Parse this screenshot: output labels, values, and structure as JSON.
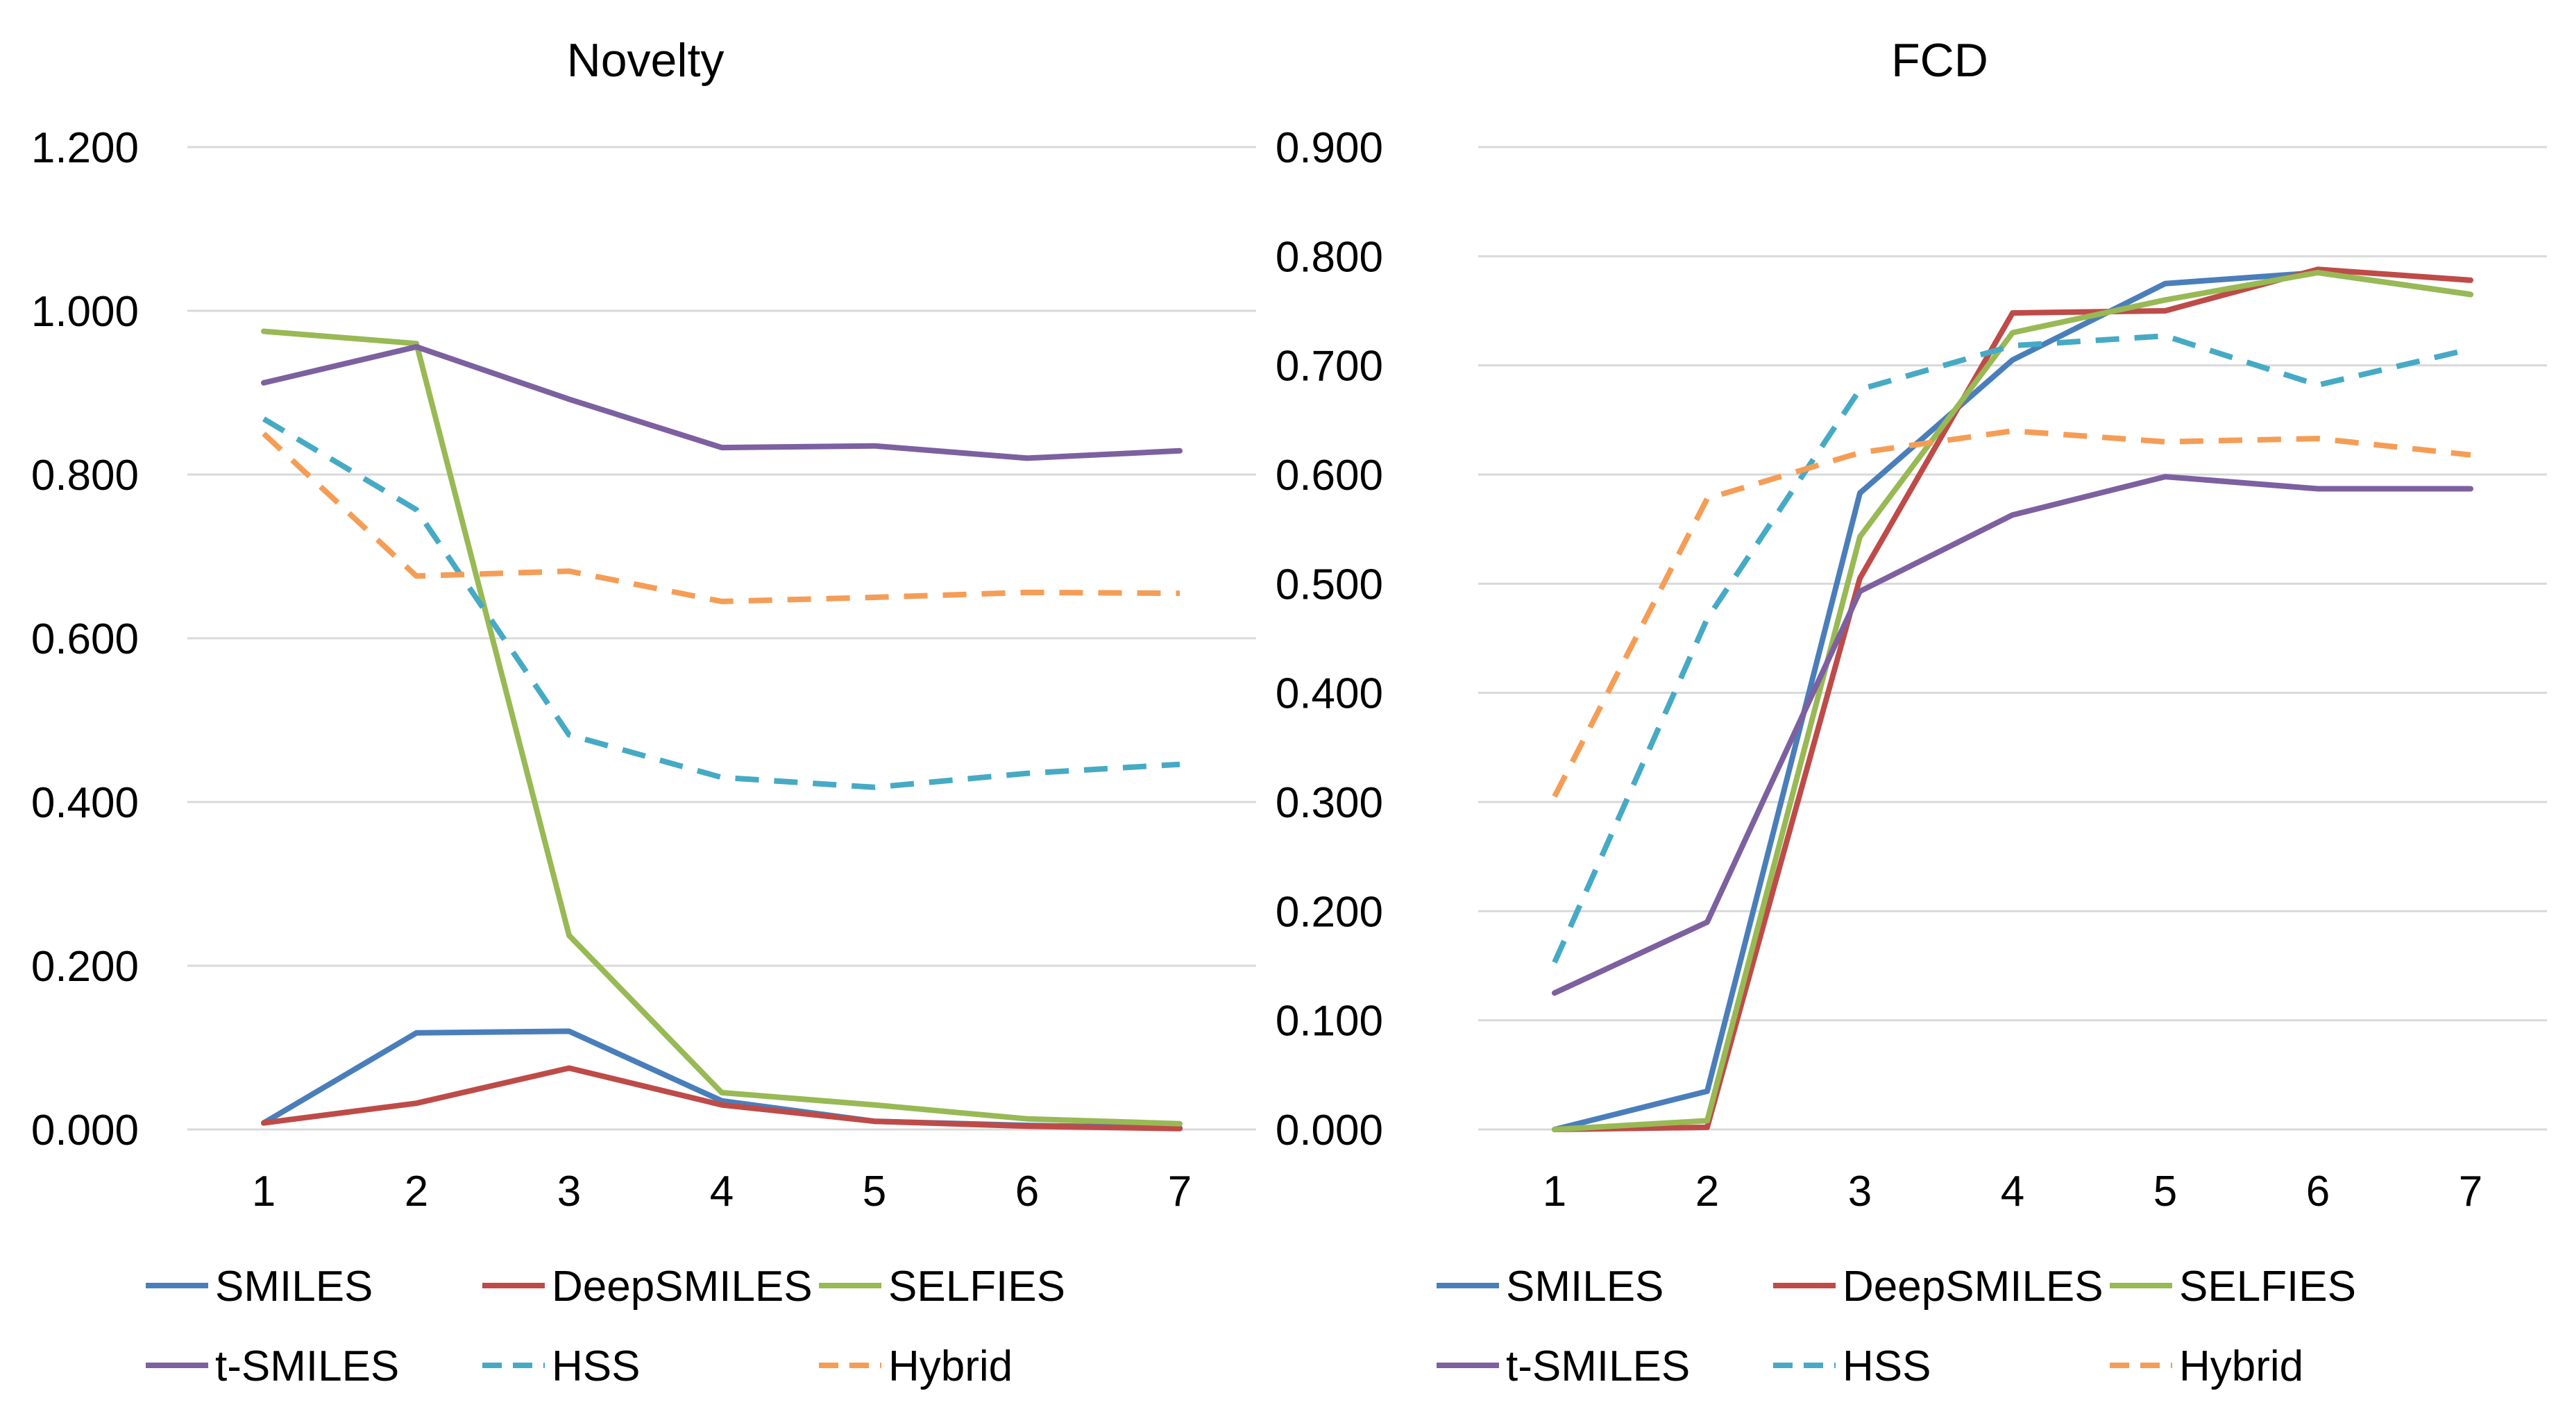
{
  "colors": {
    "SMILES": "#4a7ebb",
    "DeepSMILES": "#be4b48",
    "SELFIES": "#98b954",
    "t-SMILES": "#7d60a0",
    "HSS": "#46aac5",
    "Hybrid": "#f59d56",
    "grid": "#d9d9d9"
  },
  "chart_data": [
    {
      "type": "line",
      "title": "Novelty",
      "xlabel": "",
      "ylabel": "",
      "x": [
        1,
        2,
        3,
        4,
        5,
        6,
        7
      ],
      "ylim": [
        0,
        1.2
      ],
      "yticks": [
        "0.000",
        "0.200",
        "0.400",
        "0.600",
        "0.800",
        "1.000",
        "1.200"
      ],
      "grid": true,
      "legend": "bottom",
      "series": [
        {
          "name": "SMILES",
          "style": "solid",
          "values": [
            0.008,
            0.118,
            0.12,
            0.035,
            0.01,
            0.005,
            0.002
          ]
        },
        {
          "name": "DeepSMILES",
          "style": "solid",
          "values": [
            0.008,
            0.032,
            0.075,
            0.03,
            0.01,
            0.004,
            0.001
          ]
        },
        {
          "name": "SELFIES",
          "style": "solid",
          "values": [
            0.975,
            0.96,
            0.237,
            0.045,
            0.03,
            0.013,
            0.007
          ]
        },
        {
          "name": "t-SMILES",
          "style": "solid",
          "values": [
            0.912,
            0.956,
            0.892,
            0.833,
            0.835,
            0.82,
            0.829
          ]
        },
        {
          "name": "HSS",
          "style": "dashed",
          "values": [
            0.868,
            0.757,
            0.482,
            0.43,
            0.418,
            0.435,
            0.446
          ]
        },
        {
          "name": "Hybrid",
          "style": "dashed",
          "values": [
            0.85,
            0.676,
            0.682,
            0.645,
            0.65,
            0.656,
            0.655
          ]
        }
      ]
    },
    {
      "type": "line",
      "title": "FCD",
      "xlabel": "",
      "ylabel": "",
      "x": [
        1,
        2,
        3,
        4,
        5,
        6,
        7
      ],
      "ylim": [
        0,
        0.9
      ],
      "yticks": [
        "0.000",
        "0.100",
        "0.200",
        "0.300",
        "0.400",
        "0.500",
        "0.600",
        "0.700",
        "0.800",
        "0.900"
      ],
      "grid": true,
      "legend": "bottom",
      "series": [
        {
          "name": "SMILES",
          "style": "solid",
          "values": [
            0.0,
            0.035,
            0.583,
            0.705,
            0.775,
            0.785,
            0.765
          ]
        },
        {
          "name": "DeepSMILES",
          "style": "solid",
          "values": [
            0.0,
            0.002,
            0.505,
            0.748,
            0.75,
            0.788,
            0.778
          ]
        },
        {
          "name": "SELFIES",
          "style": "solid",
          "values": [
            0.0,
            0.008,
            0.543,
            0.73,
            0.76,
            0.785,
            0.765
          ]
        },
        {
          "name": "t-SMILES",
          "style": "solid",
          "values": [
            0.125,
            0.19,
            0.493,
            0.563,
            0.598,
            0.587,
            0.587
          ]
        },
        {
          "name": "HSS",
          "style": "dashed",
          "values": [
            0.153,
            0.468,
            0.678,
            0.718,
            0.727,
            0.682,
            0.715
          ]
        },
        {
          "name": "Hybrid",
          "style": "dashed",
          "values": [
            0.305,
            0.578,
            0.62,
            0.64,
            0.63,
            0.633,
            0.618
          ]
        }
      ]
    }
  ]
}
